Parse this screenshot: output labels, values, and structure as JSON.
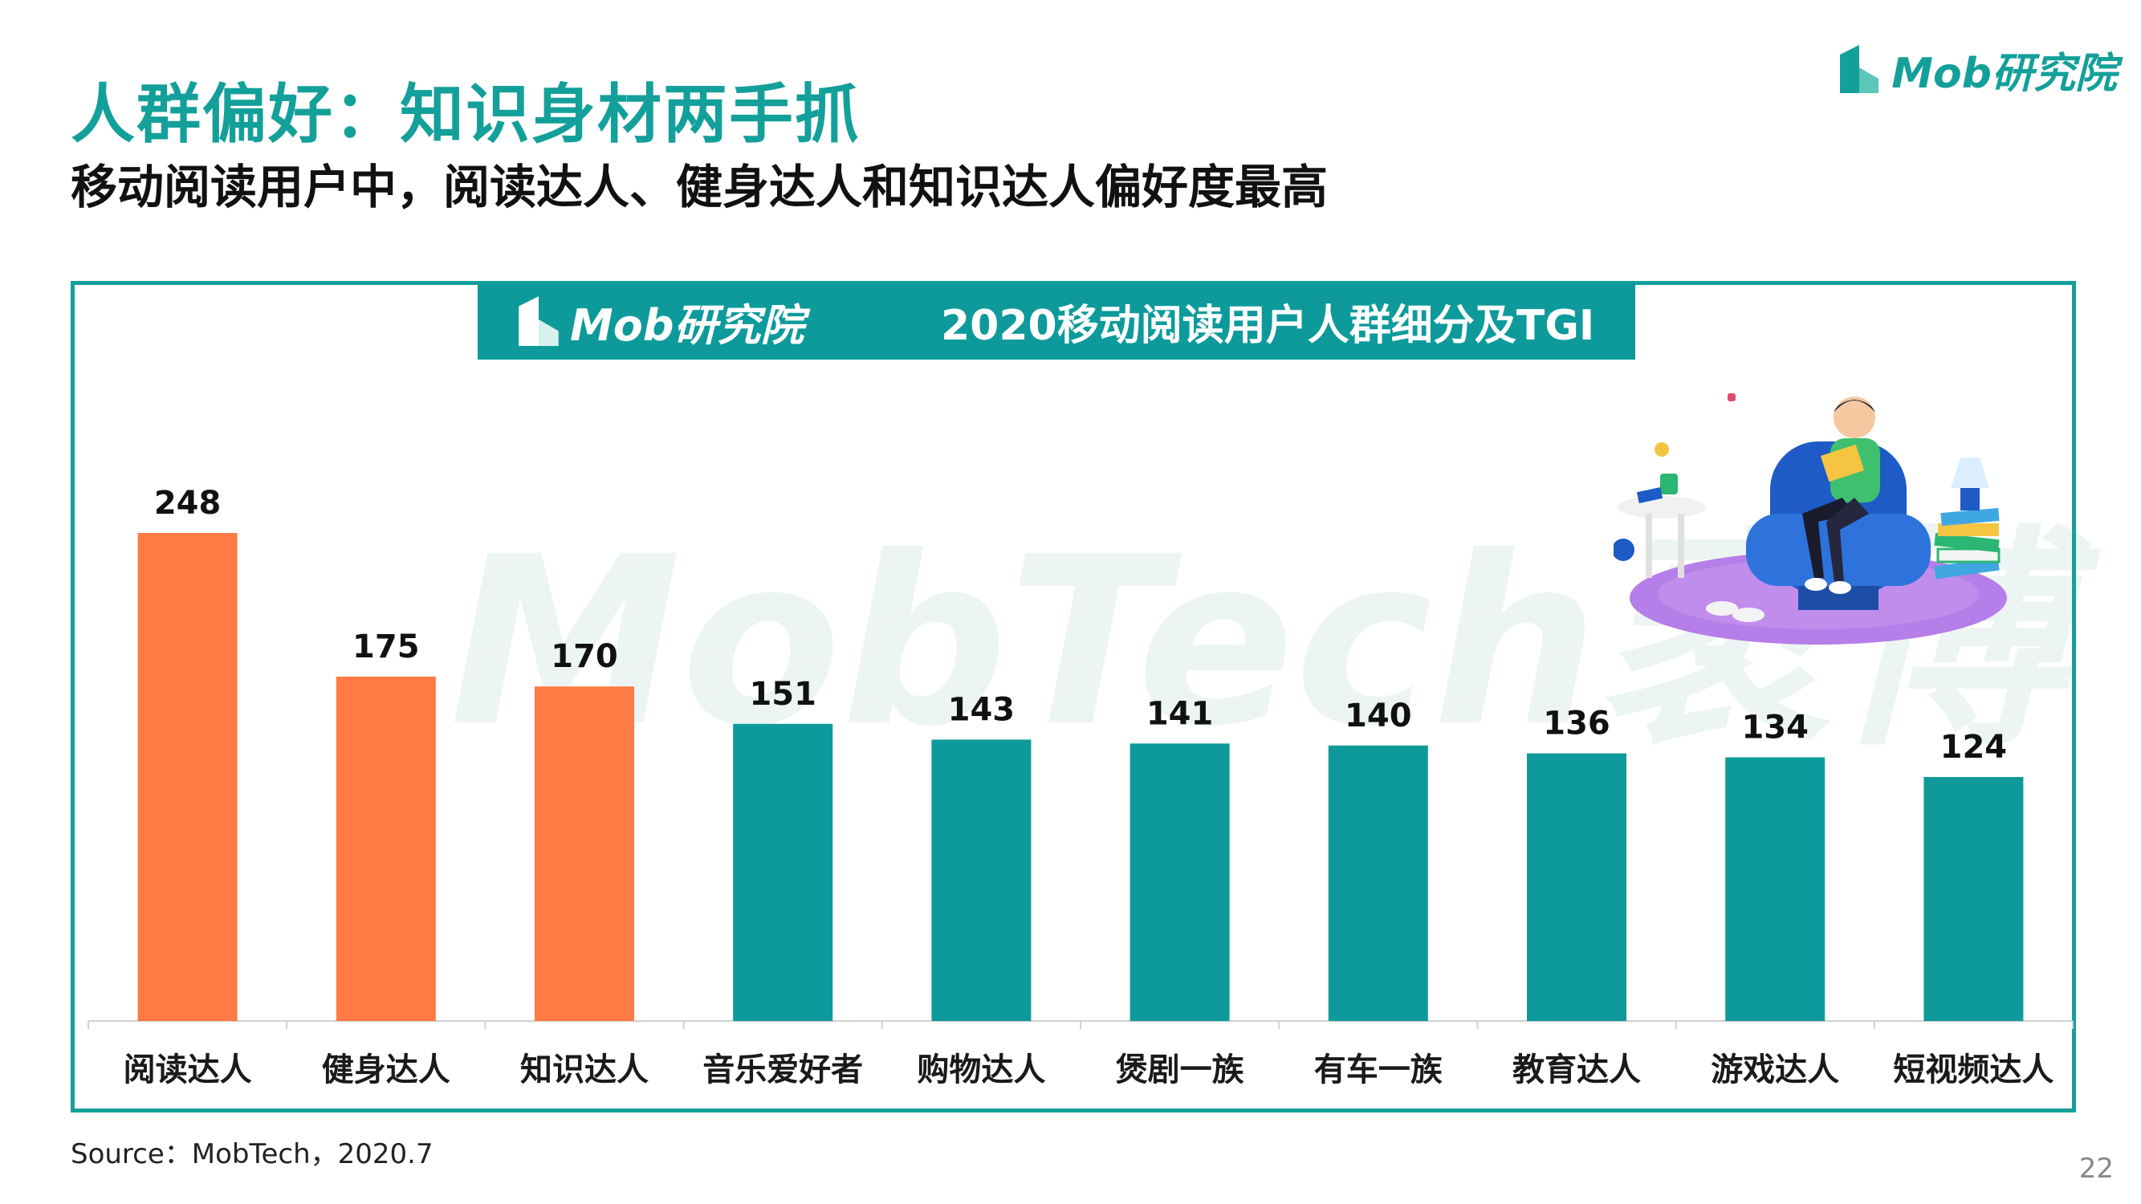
{
  "header": {
    "title": "人群偏好：知识身材两手抓",
    "subtitle": "移动阅读用户中，阅读达人、健身达人和知识达人偏好度最高",
    "logo_text": "Mob研究院"
  },
  "banner": {
    "logo_text": "Mob研究院",
    "title": "2020移动阅读用户人群细分及TGI"
  },
  "watermark": {
    "text": "MobTech袤博"
  },
  "chart_data": {
    "type": "bar",
    "categories": [
      "阅读达人",
      "健身达人",
      "知识达人",
      "音乐爱好者",
      "购物达人",
      "煲剧一族",
      "有车一族",
      "教育达人",
      "游戏达人",
      "短视频达人"
    ],
    "values": [
      248,
      175,
      170,
      151,
      143,
      141,
      140,
      136,
      134,
      124
    ],
    "highlight_count": 3,
    "colors": {
      "highlight": "#ff7a45",
      "normal": "#0e9a9b"
    },
    "title": "2020移动阅读用户人群细分及TGI",
    "ylim": [
      0,
      248
    ],
    "grid": false,
    "data_labels": true
  },
  "footer": {
    "source": "Source：MobTech，2020.7",
    "page_number": "22"
  },
  "colors": {
    "brand": "#14a09a",
    "banner": "#0e9a9b",
    "accent": "#ff7a45"
  },
  "icons": [
    "mob-logo-icon",
    "reading-person-illustration"
  ]
}
